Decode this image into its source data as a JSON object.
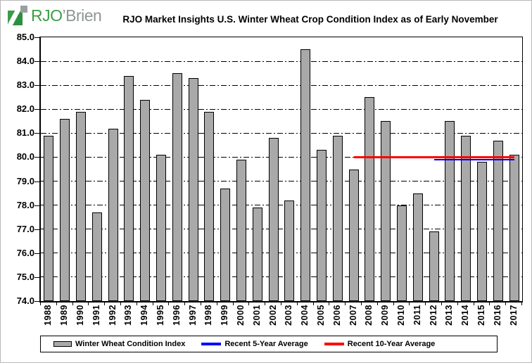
{
  "logo": {
    "primary": "RJO",
    "secondary": "’Brien"
  },
  "title": "RJO Market Insights U.S. Winter Wheat Crop Condition Index as of Early November",
  "colors": {
    "bar_fill": "#a9a9a9",
    "bar_border": "#000000",
    "five_year_line": "#0000ff",
    "ten_year_line": "#ff0000",
    "logo_green": "#3d9c47",
    "logo_gray": "#8f9693"
  },
  "chart_data": {
    "type": "bar",
    "title": "RJO Market Insights U.S. Winter Wheat Crop Condition Index as of Early November",
    "series_name": "Winter Wheat Condition Index",
    "categories": [
      "1988",
      "1989",
      "1990",
      "1991",
      "1992",
      "1993",
      "1994",
      "1995",
      "1996",
      "1997",
      "1998",
      "1999",
      "2000",
      "2001",
      "2002",
      "2003",
      "2004",
      "2005",
      "2006",
      "2007",
      "2008",
      "2009",
      "2010",
      "2011",
      "2012",
      "2013",
      "2014",
      "2015",
      "2016",
      "2017"
    ],
    "values": [
      80.9,
      81.6,
      81.9,
      77.7,
      81.2,
      83.4,
      82.4,
      80.1,
      83.5,
      83.3,
      81.9,
      78.7,
      79.9,
      77.9,
      80.8,
      78.2,
      84.5,
      80.3,
      80.9,
      79.5,
      82.5,
      81.5,
      78.0,
      78.5,
      76.9,
      81.5,
      80.9,
      79.8,
      80.7,
      80.1
    ],
    "xlabel": "",
    "ylabel": "",
    "ylim": [
      74.0,
      85.0
    ],
    "ytick_step": 1.0,
    "ytick_labels": [
      "74.0",
      "75.0",
      "76.0",
      "77.0",
      "78.0",
      "79.0",
      "80.0",
      "81.0",
      "82.0",
      "83.0",
      "84.0",
      "85.0"
    ],
    "grid": "horizontal-dash-dot",
    "legend_position": "bottom",
    "overlays": [
      {
        "name": "Recent 5-Year Average",
        "value": 79.9,
        "color": "#0000ff",
        "start_category": "2012",
        "end_category": "2017",
        "thickness": 2
      },
      {
        "name": "Recent 10-Year Average",
        "value": 80.0,
        "color": "#ff0000",
        "start_category": "2007",
        "end_category": "2017",
        "thickness": 3
      }
    ]
  },
  "legend": {
    "items": [
      {
        "label": "Winter Wheat Condition Index",
        "swatch": "bar",
        "color": "#a9a9a9"
      },
      {
        "label": "Recent 5-Year Average",
        "swatch": "line",
        "color": "#0000ff"
      },
      {
        "label": "Recent 10-Year Average",
        "swatch": "line",
        "color": "#ff0000"
      }
    ]
  }
}
